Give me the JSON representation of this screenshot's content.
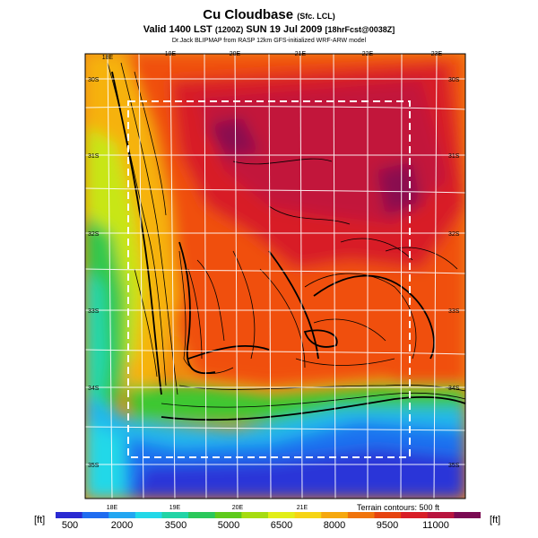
{
  "header": {
    "title": "Cu Cloudbase",
    "title_note": "(Sfc. LCL)",
    "valid_line": "Valid 1400 LST",
    "valid_note": "(1200Z)",
    "date_line": "SUN 19 Jul 2009",
    "forecast_note": "[18hrFcst@0038Z]",
    "credit": "Dr.Jack BLIPMAP from RASP 12km GFS-initialized WRF-ARW model"
  },
  "map": {
    "lon_labels_top": [
      "18E",
      "19E",
      "20E",
      "21E",
      "22E",
      "23E"
    ],
    "lon_labels_bottom": [
      "18E",
      "19E",
      "20E",
      "21E"
    ],
    "lat_labels_left": [
      "30S",
      "31S",
      "32S",
      "33S",
      "34S",
      "35S"
    ],
    "lat_labels_right": [
      "30S",
      "31S",
      "32S",
      "33S",
      "34S",
      "35S"
    ],
    "terrain_note": "Terrain contours: 500 ft"
  },
  "colorbar": {
    "unit_left": "[ft]",
    "unit_right": "[ft]",
    "tick_labels": [
      "500",
      "2000",
      "3500",
      "5000",
      "6500",
      "8000",
      "9500",
      "11000"
    ],
    "colors": [
      "#2a2ad2",
      "#1f6cf0",
      "#22a6f2",
      "#22d8e8",
      "#21d4a6",
      "#2ac85a",
      "#5fca1c",
      "#a6dc10",
      "#e2ee18",
      "#f6d414",
      "#f6a80e",
      "#f0740c",
      "#e64410",
      "#d81e26",
      "#b8143e",
      "#7a0a52"
    ]
  }
}
